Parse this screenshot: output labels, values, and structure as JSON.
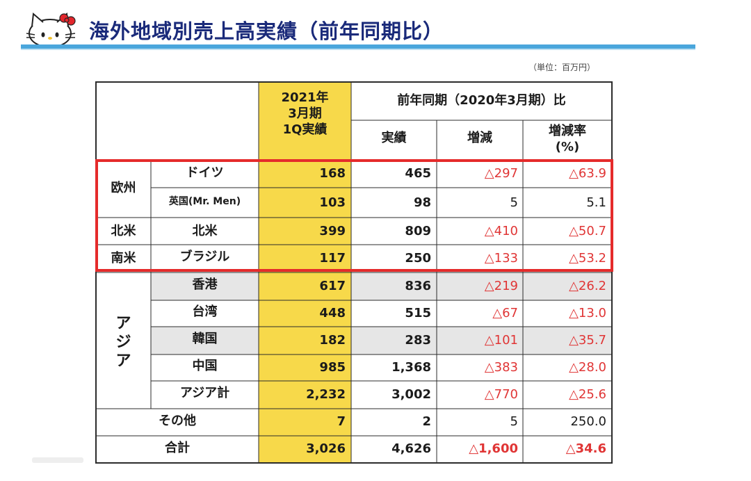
{
  "header": {
    "title": "海外地域別売上高実績（前年同期比）",
    "unit": "（単位：百万円）"
  },
  "table": {
    "header": {
      "current_period": [
        "2021年",
        "3月期",
        "1Q実績"
      ],
      "prior_group": "前年同期（2020年3月期）比",
      "actual": "実績",
      "change": "増減",
      "change_rate": [
        "増減率",
        "(%)"
      ]
    },
    "regions": {
      "europe": "欧州",
      "north_america": "北米",
      "south_america": "南米",
      "asia": "アジア"
    },
    "rows": [
      {
        "name": "ドイツ",
        "current": "168",
        "prior": "465",
        "diff": "△297",
        "rate": "△63.9"
      },
      {
        "name": "英国(Mr. Men)",
        "current": "103",
        "prior": "98",
        "diff": "5",
        "rate": "5.1"
      },
      {
        "name": "北米",
        "current": "399",
        "prior": "809",
        "diff": "△410",
        "rate": "△50.7"
      },
      {
        "name": "ブラジル",
        "current": "117",
        "prior": "250",
        "diff": "△133",
        "rate": "△53.2"
      },
      {
        "name": "香港",
        "current": "617",
        "prior": "836",
        "diff": "△219",
        "rate": "△26.2"
      },
      {
        "name": "台湾",
        "current": "448",
        "prior": "515",
        "diff": "△67",
        "rate": "△13.0"
      },
      {
        "name": "韓国",
        "current": "182",
        "prior": "283",
        "diff": "△101",
        "rate": "△35.7"
      },
      {
        "name": "中国",
        "current": "985",
        "prior": "1,368",
        "diff": "△383",
        "rate": "△28.0"
      },
      {
        "name": "アジア計",
        "current": "2,232",
        "prior": "3,002",
        "diff": "△770",
        "rate": "△25.6"
      },
      {
        "name": "その他",
        "current": "7",
        "prior": "2",
        "diff": "5",
        "rate": "250.0"
      },
      {
        "name": "合計",
        "current": "3,026",
        "prior": "4,626",
        "diff": "△1,600",
        "rate": "△34.6"
      }
    ]
  },
  "colors": {
    "title": "#1a2a7a",
    "accent_bar": "#4aa6dc",
    "highlight_column": "#f7d94a",
    "negative": "#e03535",
    "highlight_box": "#e52b2b",
    "asia_shade": "#e6e6e6"
  }
}
